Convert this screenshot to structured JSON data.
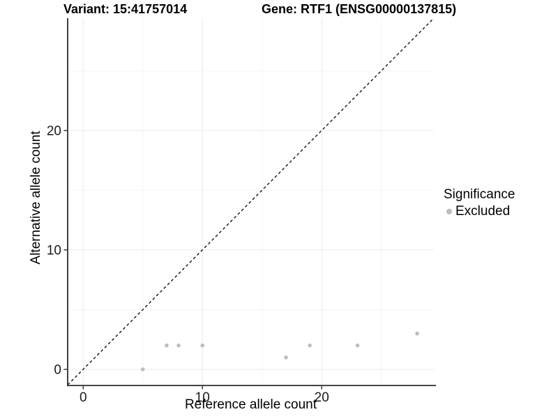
{
  "titles": {
    "variant": "Variant: 15:41757014",
    "gene": "Gene: RTF1 (ENSG00000137815)"
  },
  "legend": {
    "title": "Significance",
    "items": [
      {
        "label": "Excluded",
        "color": "#bdbdbd"
      }
    ]
  },
  "chart_data": {
    "type": "scatter",
    "title": "",
    "xlabel": "Reference allele count",
    "ylabel": "Alternative allele count",
    "xlim": [
      -1.3,
      29.4
    ],
    "ylim": [
      -1.35,
      29.4
    ],
    "x_major_ticks": [
      0,
      10,
      20
    ],
    "y_major_ticks": [
      0,
      10,
      20
    ],
    "x_minor_gridlines": [
      5,
      15,
      25
    ],
    "y_minor_gridlines": [
      5,
      15,
      25
    ],
    "grid": true,
    "legend_position": "right",
    "series": [
      {
        "name": "Excluded",
        "color": "#bdbdbd",
        "points": [
          {
            "x": 5,
            "y": 0
          },
          {
            "x": 7,
            "y": 2
          },
          {
            "x": 8,
            "y": 2
          },
          {
            "x": 10,
            "y": 2
          },
          {
            "x": 17,
            "y": 1
          },
          {
            "x": 19,
            "y": 2
          },
          {
            "x": 23,
            "y": 2
          },
          {
            "x": 28,
            "y": 3
          }
        ]
      }
    ],
    "reference_line": {
      "type": "identity",
      "style": "dashed",
      "color": "#000000"
    }
  },
  "colors": {
    "background": "#ffffff",
    "grid_major": "#ebebeb",
    "grid_minor": "#f5f5f5",
    "axis_line": "#2b2b2b",
    "tick_text": "#1a1a1a",
    "point": "#bdbdbd"
  }
}
